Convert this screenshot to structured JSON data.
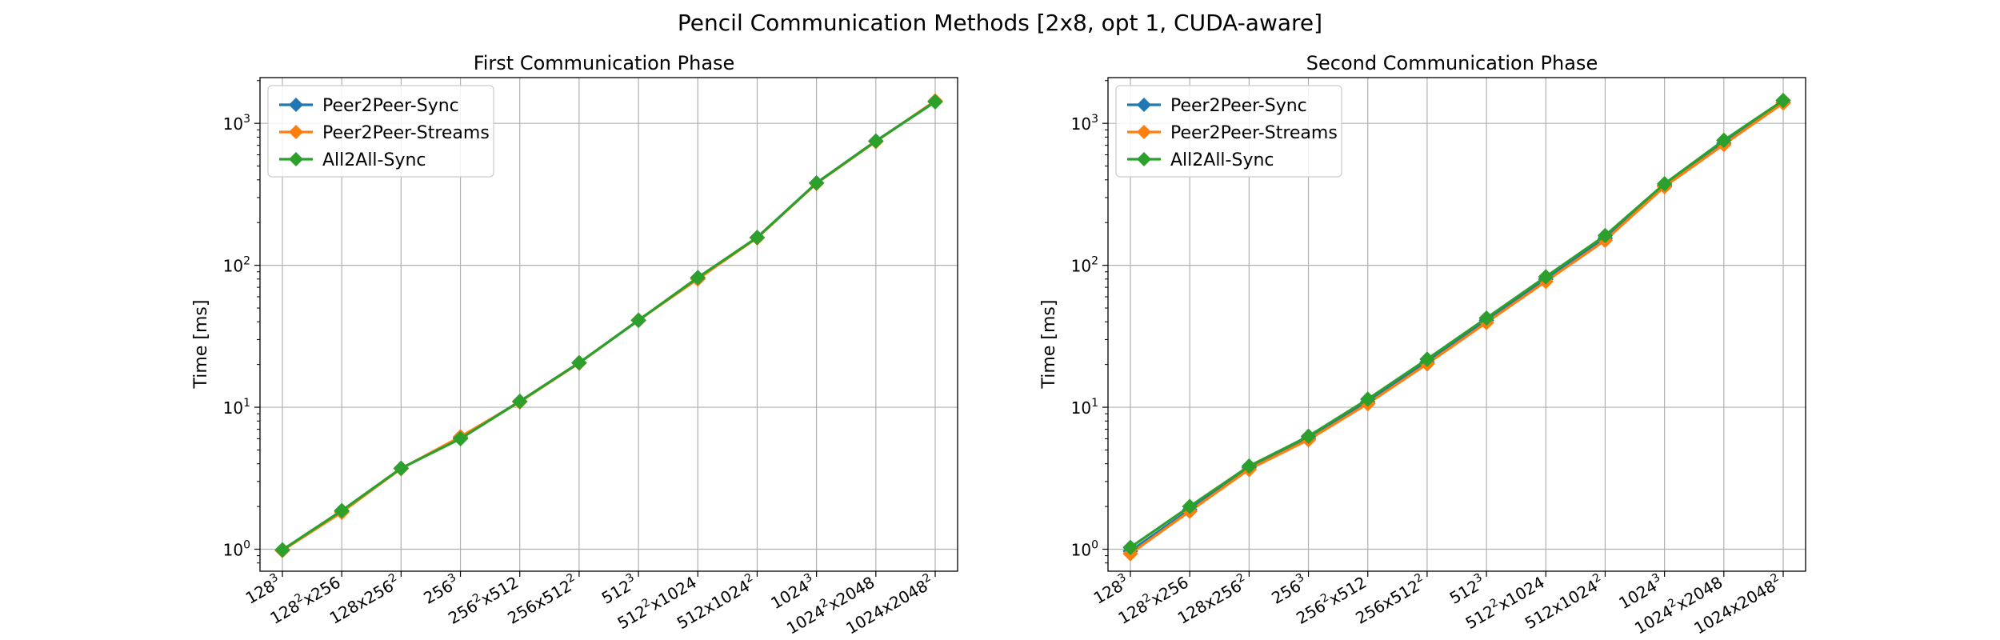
{
  "figure": {
    "title": "Pencil Communication Methods [2x8, opt 1, CUDA-aware]"
  },
  "chart_data": [
    {
      "type": "line",
      "title": "First Communication Phase",
      "xlabel": "",
      "ylabel": "Time [ms]",
      "yscale": "log",
      "ylim": [
        0.7,
        2100
      ],
      "grid": true,
      "legend": "top-left",
      "categories": [
        {
          "base": "128",
          "sup": "3",
          "rest": ""
        },
        {
          "base": "128",
          "sup": "2",
          "rest": "x256"
        },
        {
          "base": "128x256",
          "sup": "2",
          "rest": ""
        },
        {
          "base": "256",
          "sup": "3",
          "rest": ""
        },
        {
          "base": "256",
          "sup": "2",
          "rest": "x512"
        },
        {
          "base": "256x512",
          "sup": "2",
          "rest": ""
        },
        {
          "base": "512",
          "sup": "3",
          "rest": ""
        },
        {
          "base": "512",
          "sup": "2",
          "rest": "x1024"
        },
        {
          "base": "512x1024",
          "sup": "2",
          "rest": ""
        },
        {
          "base": "1024",
          "sup": "3",
          "rest": ""
        },
        {
          "base": "1024",
          "sup": "2",
          "rest": "x2048"
        },
        {
          "base": "1024x2048",
          "sup": "2",
          "rest": ""
        }
      ],
      "yticks": [
        {
          "value": 1,
          "base": "10",
          "sup": "0"
        },
        {
          "value": 10,
          "base": "10",
          "sup": "1"
        },
        {
          "value": 100,
          "base": "10",
          "sup": "2"
        },
        {
          "value": 1000,
          "base": "10",
          "sup": "3"
        }
      ],
      "series": [
        {
          "name": "Peer2Peer-Sync",
          "color": "#1f77b4",
          "values": [
            0.98,
            1.85,
            3.7,
            6.1,
            11.0,
            20.5,
            41,
            81,
            157,
            380,
            750,
            1420
          ]
        },
        {
          "name": "Peer2Peer-Streams",
          "color": "#ff7f0e",
          "values": [
            0.98,
            1.82,
            3.7,
            6.2,
            10.9,
            20.5,
            41,
            80,
            156,
            378,
            745,
            1440
          ]
        },
        {
          "name": "All2All-Sync",
          "color": "#2ca02c",
          "values": [
            0.99,
            1.87,
            3.72,
            6.0,
            11.0,
            20.6,
            41,
            82,
            157,
            380,
            750,
            1420
          ]
        }
      ]
    },
    {
      "type": "line",
      "title": "Second Communication Phase",
      "xlabel": "",
      "ylabel": "Time [ms]",
      "yscale": "log",
      "ylim": [
        0.7,
        2100
      ],
      "grid": true,
      "legend": "top-left",
      "categories": [
        {
          "base": "128",
          "sup": "3",
          "rest": ""
        },
        {
          "base": "128",
          "sup": "2",
          "rest": "x256"
        },
        {
          "base": "128x256",
          "sup": "2",
          "rest": ""
        },
        {
          "base": "256",
          "sup": "3",
          "rest": ""
        },
        {
          "base": "256",
          "sup": "2",
          "rest": "x512"
        },
        {
          "base": "256x512",
          "sup": "2",
          "rest": ""
        },
        {
          "base": "512",
          "sup": "3",
          "rest": ""
        },
        {
          "base": "512",
          "sup": "2",
          "rest": "x1024"
        },
        {
          "base": "512x1024",
          "sup": "2",
          "rest": ""
        },
        {
          "base": "1024",
          "sup": "3",
          "rest": ""
        },
        {
          "base": "1024",
          "sup": "2",
          "rest": "x2048"
        },
        {
          "base": "1024x2048",
          "sup": "2",
          "rest": ""
        }
      ],
      "yticks": [
        {
          "value": 1,
          "base": "10",
          "sup": "0"
        },
        {
          "value": 10,
          "base": "10",
          "sup": "1"
        },
        {
          "value": 100,
          "base": "10",
          "sup": "2"
        },
        {
          "value": 1000,
          "base": "10",
          "sup": "3"
        }
      ],
      "series": [
        {
          "name": "Peer2Peer-Sync",
          "color": "#1f77b4",
          "values": [
            0.97,
            1.9,
            3.75,
            6.05,
            10.9,
            20.8,
            41,
            80,
            155,
            365,
            725,
            1400
          ]
        },
        {
          "name": "Peer2Peer-Streams",
          "color": "#ff7f0e",
          "values": [
            0.93,
            1.85,
            3.65,
            5.9,
            10.6,
            20.2,
            39.5,
            77,
            150,
            358,
            710,
            1390
          ]
        },
        {
          "name": "All2All-Sync",
          "color": "#2ca02c",
          "values": [
            1.03,
            2.0,
            3.85,
            6.25,
            11.4,
            21.8,
            42.5,
            83,
            162,
            375,
            760,
            1450
          ]
        }
      ]
    }
  ]
}
